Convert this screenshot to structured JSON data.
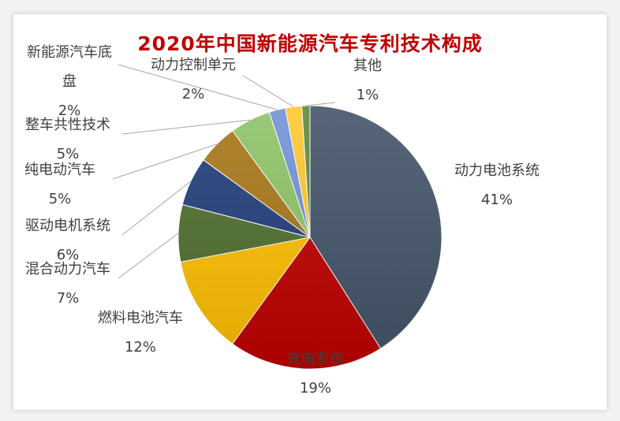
{
  "chart_data": {
    "type": "pie",
    "title": "2020年中国新能源汽车专利技术构成",
    "categories": [
      "动力电池系统",
      "充电系统",
      "燃料电池汽车",
      "混合动力汽车",
      "驱动电机系统",
      "纯电动汽车",
      "整车共性技术",
      "新能源汽车底盘",
      "动力控制单元",
      "其他"
    ],
    "values": [
      41,
      19,
      12,
      7,
      6,
      5,
      5,
      2,
      2,
      1
    ],
    "value_labels": [
      "41%",
      "19%",
      "12%",
      "7%",
      "6%",
      "5%",
      "5%",
      "2%",
      "2%",
      "1%"
    ],
    "label_lines": [
      [
        "动力电池系统"
      ],
      [
        "充电系统"
      ],
      [
        "燃料电池汽车"
      ],
      [
        "混合动力汽车"
      ],
      [
        "驱动电机系统"
      ],
      [
        "纯电动汽车"
      ],
      [
        "整车共性技术"
      ],
      [
        "新能源汽车底",
        "盘"
      ],
      [
        "动力控制单元"
      ],
      [
        "其他"
      ]
    ],
    "colors": [
      "#44546a",
      "#c00000",
      "#ffc000",
      "#4f6f2f",
      "#203e7a",
      "#a87618",
      "#8ec468",
      "#7193d6",
      "#ffc832",
      "#5f8a3a"
    ],
    "legend": "none"
  }
}
